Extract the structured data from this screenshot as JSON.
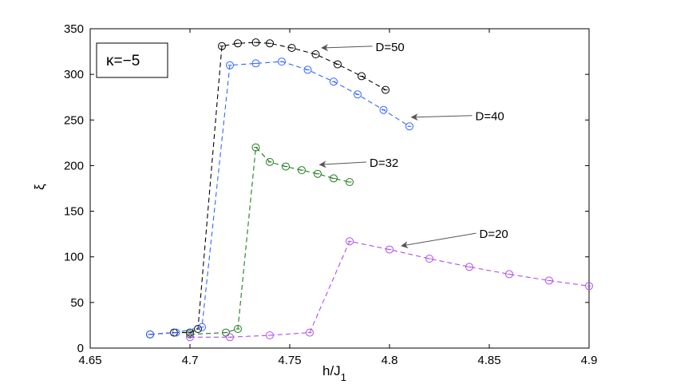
{
  "chart_data": {
    "type": "line",
    "title": "",
    "xlabel": "h/J",
    "xlabel_sub": "1",
    "ylabel": "ξ",
    "xlim": [
      4.65,
      4.9
    ],
    "ylim": [
      0,
      350
    ],
    "xticks": [
      "4.65",
      "4.7",
      "4.75",
      "4.8",
      "4.85",
      "4.9"
    ],
    "yticks": [
      "0",
      "50",
      "100",
      "150",
      "200",
      "250",
      "300",
      "350"
    ],
    "grid": false,
    "legend_box": {
      "text": "κ=−5",
      "placement": "top-left"
    },
    "series": [
      {
        "name": "D=50",
        "color": "#000000",
        "x": [
          4.68,
          4.692,
          4.7,
          4.704,
          4.716,
          4.724,
          4.733,
          4.74,
          4.751,
          4.763,
          4.774,
          4.786,
          4.798
        ],
        "y": [
          15,
          17,
          17,
          21,
          331,
          334,
          335,
          334,
          329,
          322,
          311,
          298,
          283
        ]
      },
      {
        "name": "D=40",
        "color": "#3366ff",
        "x": [
          4.68,
          4.693,
          4.706,
          4.72,
          4.733,
          4.746,
          4.759,
          4.772,
          4.784,
          4.797,
          4.81
        ],
        "y": [
          15,
          17,
          23,
          310,
          312,
          314,
          305,
          292,
          278,
          261,
          243
        ]
      },
      {
        "name": "D=32",
        "color": "#1f7a1f",
        "x": [
          4.7,
          4.718,
          4.724,
          4.733,
          4.74,
          4.748,
          4.756,
          4.764,
          4.772,
          4.78
        ],
        "y": [
          15,
          17,
          21,
          220,
          204,
          199,
          195,
          191,
          186,
          182
        ]
      },
      {
        "name": "D=20",
        "color": "#b24cf0",
        "x": [
          4.7,
          4.72,
          4.74,
          4.76,
          4.78,
          4.8,
          4.82,
          4.84,
          4.86,
          4.88,
          4.9
        ],
        "y": [
          12,
          12,
          14,
          17,
          117,
          108,
          98,
          89,
          81,
          74,
          68
        ]
      }
    ],
    "annotations": [
      {
        "text": "D=50",
        "series": "D=50",
        "arrow_to_x": 4.766,
        "arrow_to_y": 329,
        "text_x": 4.793,
        "text_y": 330
      },
      {
        "text": "D=40",
        "series": "D=40",
        "arrow_to_x": 4.811,
        "arrow_to_y": 253,
        "text_x": 4.843,
        "text_y": 254
      },
      {
        "text": "D=32",
        "series": "D=32",
        "arrow_to_x": 4.765,
        "arrow_to_y": 201,
        "text_x": 4.79,
        "text_y": 203
      },
      {
        "text": "D=20",
        "series": "D=20",
        "arrow_to_x": 4.806,
        "arrow_to_y": 112,
        "text_x": 4.845,
        "text_y": 125
      }
    ]
  }
}
